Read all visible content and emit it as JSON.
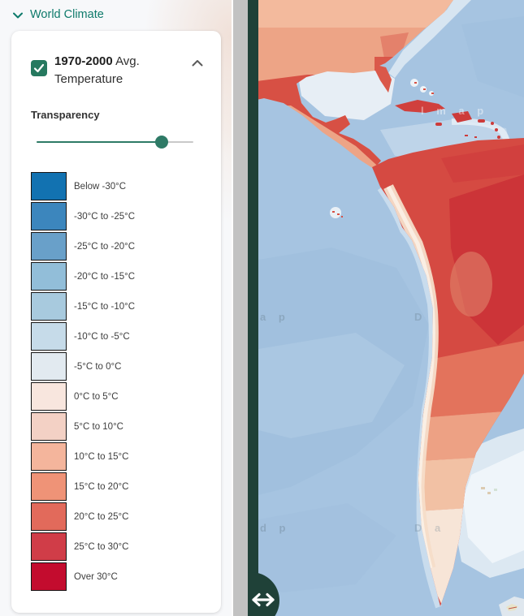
{
  "theme": {
    "accent_teal": "#0e7a6b",
    "slider_teal": "#2e7a66",
    "checkbox_green": "#26795f",
    "divider_green": "#1f4138",
    "scrollbar_gray": "#c2c2c2",
    "page_bg": "#f7f8fa",
    "ocean_blue": "#a6c4e1"
  },
  "header": {
    "title": "World Climate"
  },
  "panel": {
    "layer": {
      "title_bold": "1970-2000",
      "title_rest": " Avg. Temperature",
      "checkbox_checked": true
    },
    "transparency": {
      "label": "Transparency",
      "value_percent": 80
    },
    "legend": [
      {
        "label": "Below -30°C",
        "color": "#1272b1"
      },
      {
        "label": "-30°C to -25°C",
        "color": "#3c86bd"
      },
      {
        "label": "-25°C to -20°C",
        "color": "#69a0c9"
      },
      {
        "label": "-20°C to -15°C",
        "color": "#92bed9"
      },
      {
        "label": "-15°C to -10°C",
        "color": "#a8cade"
      },
      {
        "label": "-10°C to -5°C",
        "color": "#c6dbe9"
      },
      {
        "label": "-5°C to 0°C",
        "color": "#e2eaf0"
      },
      {
        "label": "0°C to 5°C",
        "color": "#f8e6de"
      },
      {
        "label": "5°C to 10°C",
        "color": "#f3d1c5"
      },
      {
        "label": "10°C to 15°C",
        "color": "#f4b59c"
      },
      {
        "label": "15°C to 20°C",
        "color": "#ef9377"
      },
      {
        "label": "20°C to 25°C",
        "color": "#e26a5b"
      },
      {
        "label": "25°C to 30°C",
        "color": "#d03d48"
      },
      {
        "label": "Over 30°C",
        "color": "#c30c2e"
      }
    ]
  },
  "map": {
    "watermarks": [
      "l m a p",
      "a p",
      "D",
      "d p",
      "D a"
    ]
  }
}
